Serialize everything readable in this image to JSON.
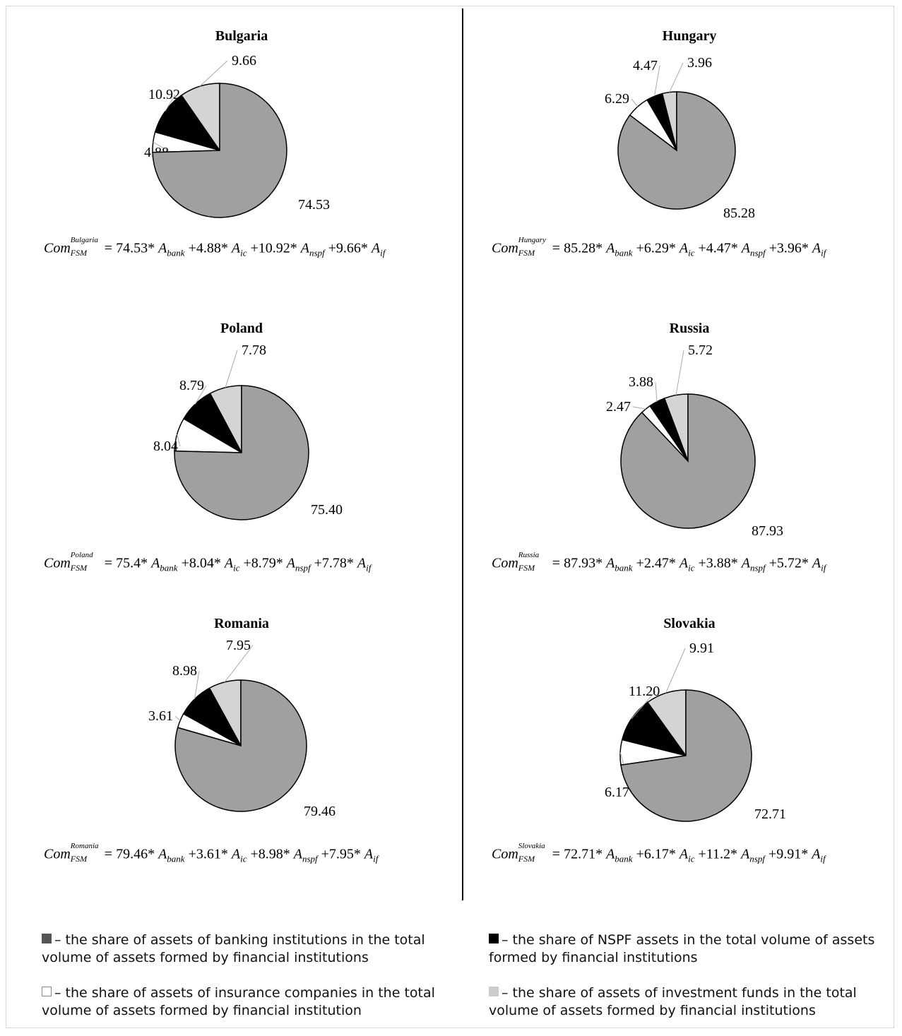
{
  "colors": {
    "bank": "#a0a0a0",
    "ic": "#ffffff",
    "nspf": "#000000",
    "if": "#d4d4d4",
    "legend_bank": "#555555"
  },
  "chart_data": [
    {
      "type": "pie",
      "title": "Bulgaria",
      "slices": [
        {
          "key": "bank",
          "value": 74.53,
          "label": "74.53"
        },
        {
          "key": "ic",
          "value": 4.88,
          "label": "4.88"
        },
        {
          "key": "nspf",
          "value": 10.92,
          "label": "10.92"
        },
        {
          "key": "if",
          "value": 9.66,
          "label": "9.66"
        }
      ],
      "formula": {
        "country": "Bulgaria",
        "bank": "74.53",
        "ic": "4.88",
        "nspf": "10.92",
        "if": "9.66"
      }
    },
    {
      "type": "pie",
      "title": "Hungary",
      "slices": [
        {
          "key": "bank",
          "value": 85.28,
          "label": "85.28"
        },
        {
          "key": "ic",
          "value": 6.29,
          "label": "6.29"
        },
        {
          "key": "nspf",
          "value": 4.47,
          "label": "4.47"
        },
        {
          "key": "if",
          "value": 3.96,
          "label": "3.96"
        }
      ],
      "formula": {
        "country": "Hungary",
        "bank": "85.28",
        "ic": "6.29",
        "nspf": "4.47",
        "if": "3.96"
      }
    },
    {
      "type": "pie",
      "title": "Poland",
      "slices": [
        {
          "key": "bank",
          "value": 75.4,
          "label": "75.40"
        },
        {
          "key": "ic",
          "value": 8.04,
          "label": "8.04"
        },
        {
          "key": "nspf",
          "value": 8.79,
          "label": "8.79"
        },
        {
          "key": "if",
          "value": 7.78,
          "label": "7.78"
        }
      ],
      "formula": {
        "country": "Poland",
        "bank": "75.4",
        "ic": "8.04",
        "nspf": "8.79",
        "if": "7.78"
      }
    },
    {
      "type": "pie",
      "title": "Russia",
      "slices": [
        {
          "key": "bank",
          "value": 87.93,
          "label": "87.93"
        },
        {
          "key": "ic",
          "value": 2.47,
          "label": "2.47"
        },
        {
          "key": "nspf",
          "value": 3.88,
          "label": "3.88"
        },
        {
          "key": "if",
          "value": 5.72,
          "label": "5.72"
        }
      ],
      "formula": {
        "country": "Russia",
        "bank": "87.93",
        "ic": "2.47",
        "nspf": "3.88",
        "if": "5.72"
      }
    },
    {
      "type": "pie",
      "title": "Romania",
      "slices": [
        {
          "key": "bank",
          "value": 79.46,
          "label": "79.46"
        },
        {
          "key": "ic",
          "value": 3.61,
          "label": "3.61"
        },
        {
          "key": "nspf",
          "value": 8.98,
          "label": "8.98"
        },
        {
          "key": "if",
          "value": 7.95,
          "label": "7.95"
        }
      ],
      "formula": {
        "country": "Romania",
        "bank": "79.46",
        "ic": "3.61",
        "nspf": "8.98",
        "if": "7.95"
      }
    },
    {
      "type": "pie",
      "title": "Slovakia",
      "slices": [
        {
          "key": "bank",
          "value": 72.71,
          "label": "72.71"
        },
        {
          "key": "ic",
          "value": 6.17,
          "label": "6.17"
        },
        {
          "key": "nspf",
          "value": 11.2,
          "label": "11.20"
        },
        {
          "key": "if",
          "value": 9.91,
          "label": "9.91"
        }
      ],
      "formula": {
        "country": "Slovakia",
        "bank": "72.71",
        "ic": "6.17",
        "nspf": "11.2",
        "if": "9.91"
      }
    }
  ],
  "formula_parts": {
    "com": "Com",
    "fsm": "FSM",
    "eq": "=",
    "a": "A",
    "times": "*",
    "plus": "+",
    "sub_bank": "bank",
    "sub_ic": "ic",
    "sub_nspf": "nspf",
    "sub_if": "if"
  },
  "legend": {
    "bank": "– the share of assets of banking institutions in the total volume of assets formed by financial institutions",
    "nspf": "– the share of NSPF assets in the total volume of assets formed by financial institutions",
    "ic": "– the share of assets of insurance companies in the total volume of assets formed by financial institution",
    "if": "– the share of assets of investment funds in the total volume of assets formed by financial institutions"
  }
}
